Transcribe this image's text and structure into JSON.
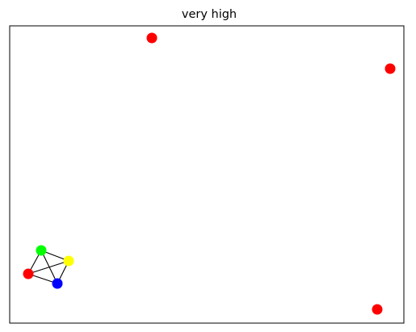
{
  "figure": {
    "title": "very high"
  },
  "colors": {
    "frame": "#000000",
    "edge": "#000000",
    "background": "#ffffff"
  },
  "graph": {
    "nodes": [
      {
        "id": "node-top-center",
        "color": "#ff0000",
        "connected": false
      },
      {
        "id": "node-top-right",
        "color": "#ff0000",
        "connected": false
      },
      {
        "id": "node-bottom-right",
        "color": "#ff0000",
        "connected": false
      },
      {
        "id": "node-green",
        "color": "#00ff00",
        "connected": true
      },
      {
        "id": "node-yellow",
        "color": "#ffff00",
        "connected": true
      },
      {
        "id": "node-red-cluster",
        "color": "#ff0000",
        "connected": true
      },
      {
        "id": "node-blue",
        "color": "#0000ff",
        "connected": true
      }
    ],
    "edges": [
      [
        "node-green",
        "node-yellow"
      ],
      [
        "node-green",
        "node-red-cluster"
      ],
      [
        "node-green",
        "node-blue"
      ],
      [
        "node-yellow",
        "node-red-cluster"
      ],
      [
        "node-yellow",
        "node-blue"
      ],
      [
        "node-red-cluster",
        "node-blue"
      ]
    ]
  }
}
